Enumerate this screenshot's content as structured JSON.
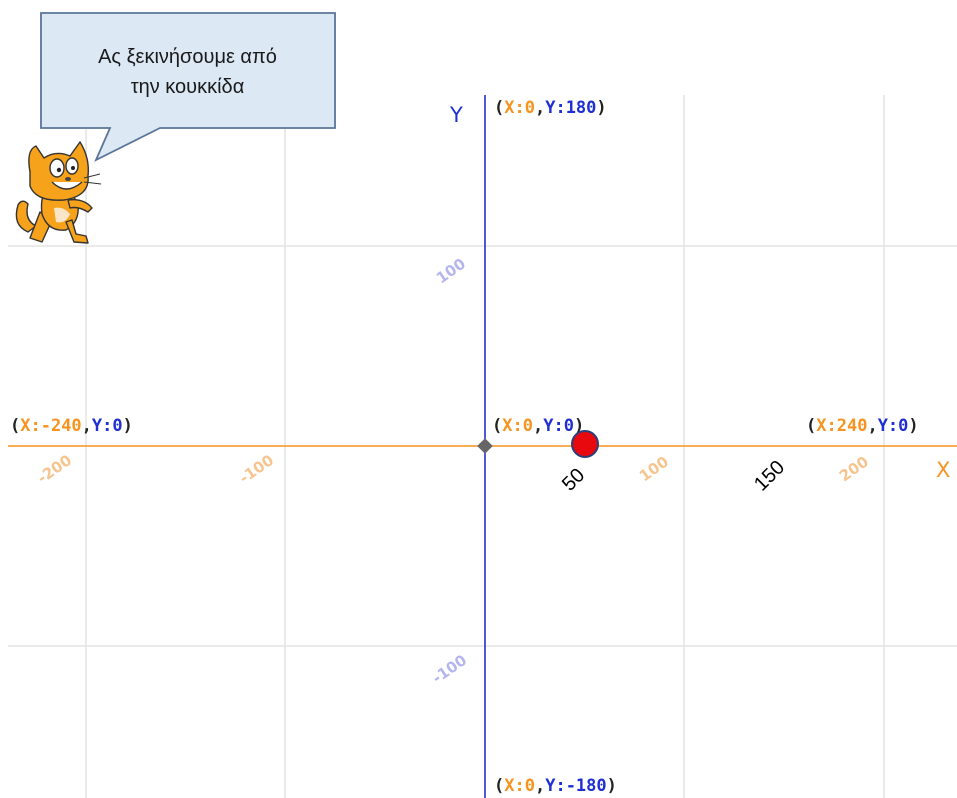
{
  "speech_bubble": {
    "line1": "Ας ξεκινήσουμε από",
    "line2": "την κουκκίδα"
  },
  "axis_names": {
    "y": "Y",
    "x": "X"
  },
  "coord_labels": {
    "top": {
      "x_part": "X:0",
      "y_part": "Y:180"
    },
    "left": {
      "x_part": "X:-240",
      "y_part": "Y:0"
    },
    "origin": {
      "x_part": "X:0",
      "y_part": "Y:0"
    },
    "right": {
      "x_part": "X:240",
      "y_part": "Y:0"
    },
    "bottom": {
      "x_part": "X:0",
      "y_part": "Y:-180"
    }
  },
  "grid_ticks": {
    "x_neg200": "-200",
    "x_neg100": "-100",
    "x_100": "100",
    "x_200": "200",
    "y_100": "100",
    "y_neg100": "-100"
  },
  "annotations": {
    "a50": "50",
    "a150": "150"
  },
  "colors": {
    "x_axis": "#f7931e",
    "y_axis": "#1f2fd1",
    "grid": "#e3e3e3",
    "dot": "#e8090f",
    "bubble_fill": "#dce9f5",
    "bubble_border": "#5a7597"
  },
  "icons": {
    "sprite": "scratch-cat-icon",
    "dot": "red-dot-icon"
  },
  "point": {
    "x": 50,
    "y": 0
  }
}
